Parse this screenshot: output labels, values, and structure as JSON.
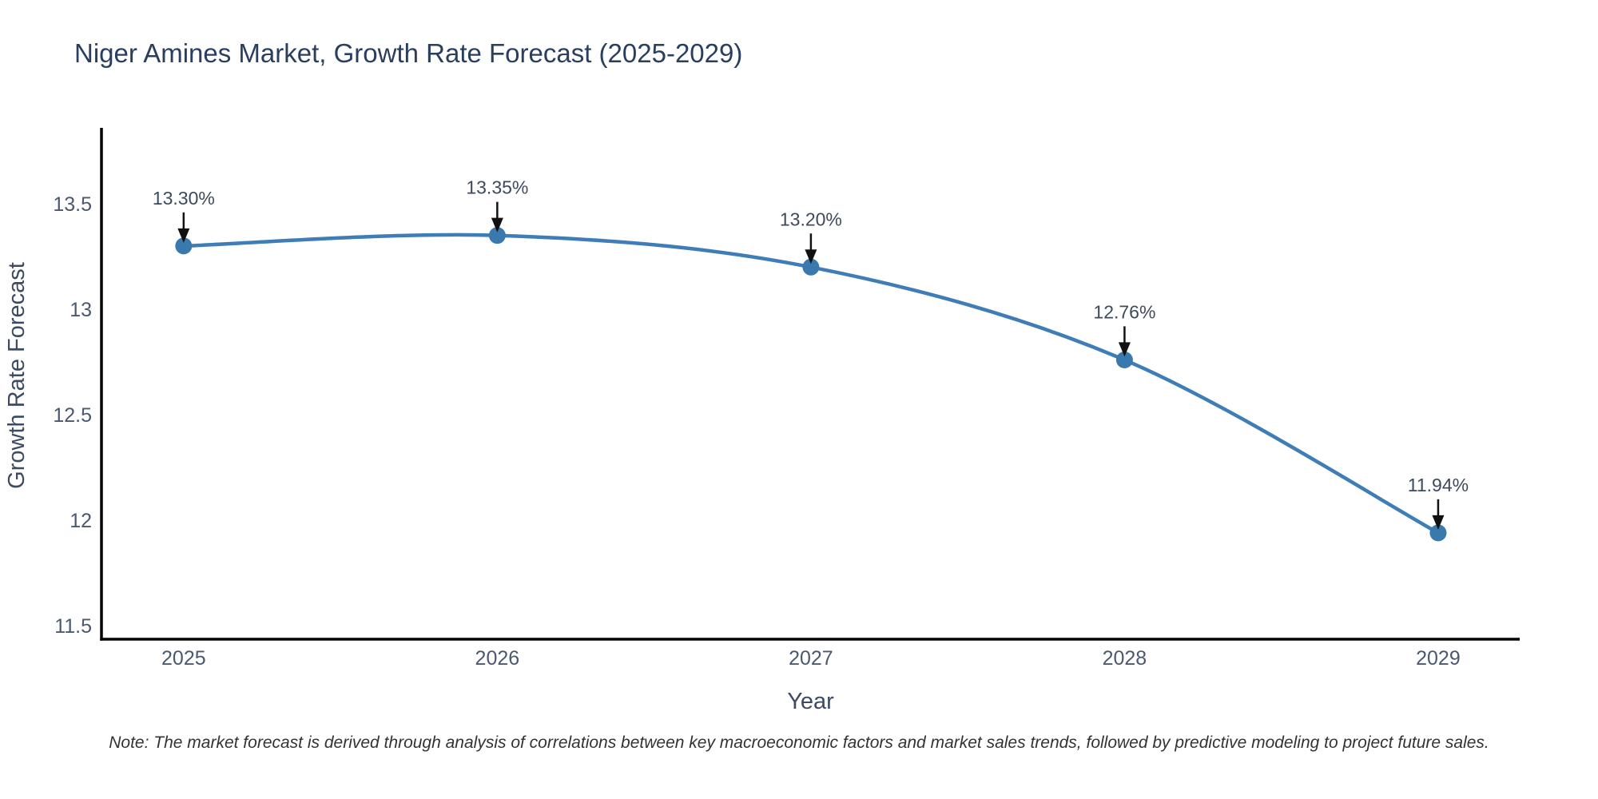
{
  "title": "Niger Amines Market, Growth Rate Forecast (2025-2029)",
  "note": "Note: The market forecast is derived through analysis of correlations between key macroeconomic factors and market sales trends, followed by predictive modeling to project future sales.",
  "chart_data": {
    "type": "line",
    "title": "Niger Amines Market, Growth Rate Forecast (2025-2029)",
    "xlabel": "Year",
    "ylabel": "Growth Rate Forecast",
    "x": [
      2025,
      2026,
      2027,
      2028,
      2029
    ],
    "values": [
      13.3,
      13.35,
      13.2,
      12.76,
      11.94
    ],
    "point_labels": [
      "13.30%",
      "13.35%",
      "13.20%",
      "12.76%",
      "11.94%"
    ],
    "x_tick_labels": [
      "2025",
      "2026",
      "2027",
      "2028",
      "2029"
    ],
    "y_tick_values": [
      11.5,
      12,
      12.5,
      13,
      13.5
    ],
    "y_tick_labels": [
      "11.5",
      "12",
      "12.5",
      "13",
      "13.5"
    ],
    "xlim": [
      2024.738,
      2029.26
    ],
    "ylim": [
      11.436,
      13.86
    ],
    "line_shape": "spline",
    "grid": false,
    "legend": "none",
    "annotations_have_arrows": true,
    "colors": {
      "line": "#3e7db6",
      "marker": "#3a79ae",
      "axis_line": "#000000",
      "title_text": "#2a3f5f",
      "axis_title_text": "#3c4a63",
      "tick_text": "#4a5870",
      "annotation_text": "#3d4a5c",
      "arrow": "#111111",
      "note_text": "#333333",
      "background": "#ffffff"
    }
  }
}
